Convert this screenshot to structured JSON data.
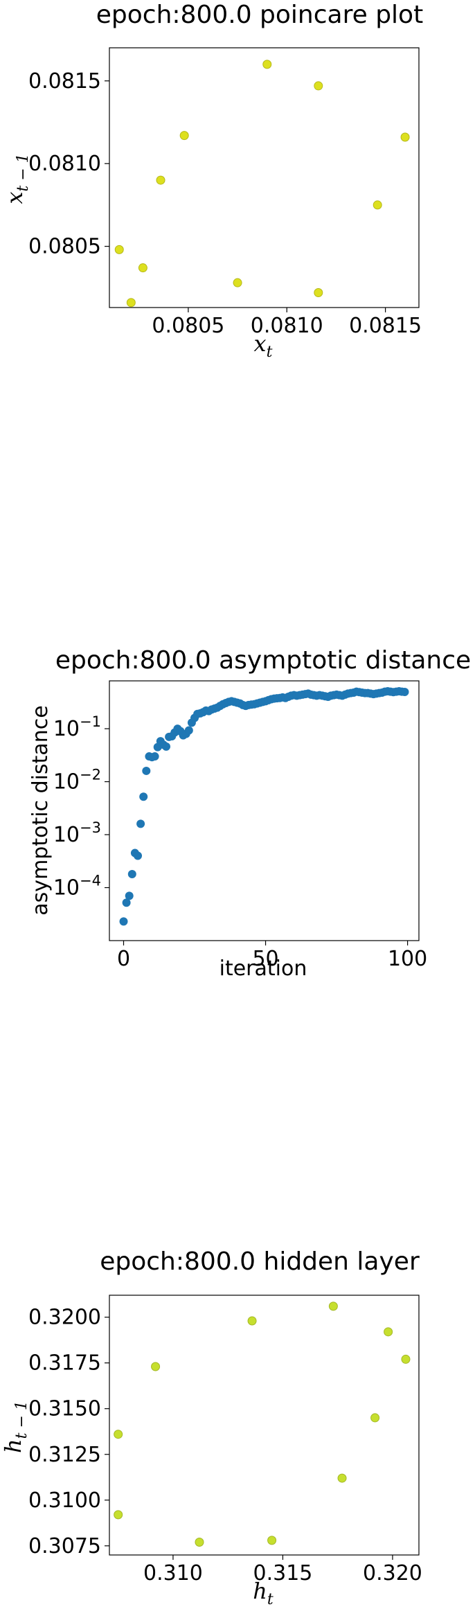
{
  "charts": [
    {
      "id": "poincare",
      "type": "scatter",
      "title": "epoch:800.0 poincare plot",
      "xlabel_main": "x",
      "xlabel_sub": "t",
      "ylabel_main": "x",
      "ylabel_sub": "t − 1",
      "xlim": [
        0.0801,
        0.08167
      ],
      "ylim": [
        0.08013,
        0.0817
      ],
      "yscale": "linear",
      "xticks": [
        {
          "v": 0.0805,
          "label": "0.0805"
        },
        {
          "v": 0.081,
          "label": "0.0810"
        },
        {
          "v": 0.0815,
          "label": "0.0815"
        }
      ],
      "yticks": [
        {
          "v": 0.0805,
          "label": "0.0805"
        },
        {
          "v": 0.081,
          "label": "0.0810"
        },
        {
          "v": 0.0815,
          "label": "0.0815"
        }
      ],
      "point_color": "#dde01f",
      "point_edge": "#b5b81a",
      "points": [
        {
          "x": 0.0809,
          "y": 0.0816
        },
        {
          "x": 0.08116,
          "y": 0.08147
        },
        {
          "x": 0.08048,
          "y": 0.08117
        },
        {
          "x": 0.0816,
          "y": 0.08116
        },
        {
          "x": 0.08036,
          "y": 0.0809
        },
        {
          "x": 0.08146,
          "y": 0.08075
        },
        {
          "x": 0.08015,
          "y": 0.08048
        },
        {
          "x": 0.08027,
          "y": 0.08037
        },
        {
          "x": 0.08075,
          "y": 0.08028
        },
        {
          "x": 0.08116,
          "y": 0.08022
        },
        {
          "x": 0.08021,
          "y": 0.08016
        }
      ]
    },
    {
      "id": "asymptotic",
      "type": "scatter",
      "title": "epoch:800.0 asymptotic distance",
      "xlabel": "iteration",
      "ylabel": "asymptotic distance",
      "xlim": [
        -5,
        104
      ],
      "ylim": [
        1e-05,
        0.8
      ],
      "yscale": "log",
      "xticks": [
        {
          "v": 0,
          "label": "0"
        },
        {
          "v": 50,
          "label": "50"
        },
        {
          "v": 100,
          "label": "100"
        }
      ],
      "yticks": [
        {
          "v": 0.0001,
          "base": "10",
          "exp": "−4"
        },
        {
          "v": 0.001,
          "base": "10",
          "exp": "−3"
        },
        {
          "v": 0.01,
          "base": "10",
          "exp": "−2"
        },
        {
          "v": 0.1,
          "base": "10",
          "exp": "−1"
        }
      ],
      "point_color": "#1f77b4",
      "x": [
        0,
        1,
        2,
        3,
        4,
        5,
        6,
        7,
        8,
        9,
        10,
        11,
        12,
        13,
        14,
        15,
        16,
        17,
        18,
        19,
        20,
        21,
        22,
        23,
        24,
        25,
        26,
        27,
        28,
        29,
        30,
        31,
        32,
        33,
        34,
        35,
        36,
        37,
        38,
        39,
        40,
        41,
        42,
        43,
        44,
        45,
        46,
        47,
        48,
        49,
        50,
        51,
        52,
        53,
        54,
        55,
        56,
        57,
        58,
        59,
        60,
        61,
        62,
        63,
        64,
        65,
        66,
        67,
        68,
        69,
        70,
        71,
        72,
        73,
        74,
        75,
        76,
        77,
        78,
        79,
        80,
        81,
        82,
        83,
        84,
        85,
        86,
        87,
        88,
        89,
        90,
        91,
        92,
        93,
        94,
        95,
        96,
        97,
        98,
        99
      ],
      "y": [
        2.3e-05,
        5.2e-05,
        7e-05,
        0.00018,
        0.00045,
        0.0004,
        0.0016,
        0.0052,
        0.016,
        0.03,
        0.029,
        0.03,
        0.045,
        0.058,
        0.05,
        0.046,
        0.07,
        0.072,
        0.085,
        0.1,
        0.09,
        0.075,
        0.08,
        0.093,
        0.13,
        0.16,
        0.19,
        0.195,
        0.205,
        0.22,
        0.215,
        0.23,
        0.24,
        0.25,
        0.27,
        0.29,
        0.305,
        0.32,
        0.33,
        0.32,
        0.31,
        0.3,
        0.28,
        0.27,
        0.28,
        0.285,
        0.29,
        0.3,
        0.31,
        0.32,
        0.33,
        0.345,
        0.36,
        0.37,
        0.375,
        0.38,
        0.39,
        0.38,
        0.4,
        0.42,
        0.43,
        0.42,
        0.43,
        0.44,
        0.45,
        0.46,
        0.44,
        0.43,
        0.42,
        0.43,
        0.42,
        0.41,
        0.4,
        0.42,
        0.43,
        0.44,
        0.43,
        0.42,
        0.44,
        0.46,
        0.47,
        0.48,
        0.5,
        0.49,
        0.48,
        0.47,
        0.47,
        0.46,
        0.45,
        0.46,
        0.47,
        0.48,
        0.5,
        0.51,
        0.5,
        0.49,
        0.5,
        0.51,
        0.5,
        0.495
      ]
    },
    {
      "id": "hidden",
      "type": "scatter",
      "title": "epoch:800.0 hidden layer",
      "xlabel_main": "h",
      "xlabel_sub": "t",
      "ylabel_main": "h",
      "ylabel_sub": "t − 1",
      "xlim": [
        0.3071,
        0.3212
      ],
      "ylim": [
        0.307,
        0.3212
      ],
      "yscale": "linear",
      "xticks": [
        {
          "v": 0.31,
          "label": "0.310"
        },
        {
          "v": 0.315,
          "label": "0.315"
        },
        {
          "v": 0.32,
          "label": "0.320"
        }
      ],
      "yticks": [
        {
          "v": 0.3075,
          "label": "0.3075"
        },
        {
          "v": 0.31,
          "label": "0.3100"
        },
        {
          "v": 0.3125,
          "label": "0.3125"
        },
        {
          "v": 0.315,
          "label": "0.3150"
        },
        {
          "v": 0.3175,
          "label": "0.3175"
        },
        {
          "v": 0.32,
          "label": "0.3200"
        }
      ],
      "point_color": "#c6df2e",
      "point_edge": "#a3b726",
      "points": [
        {
          "x": 0.3173,
          "y": 0.3206
        },
        {
          "x": 0.3136,
          "y": 0.3198
        },
        {
          "x": 0.3198,
          "y": 0.3192
        },
        {
          "x": 0.3206,
          "y": 0.3177
        },
        {
          "x": 0.3092,
          "y": 0.3173
        },
        {
          "x": 0.3192,
          "y": 0.3145
        },
        {
          "x": 0.3075,
          "y": 0.3136
        },
        {
          "x": 0.3177,
          "y": 0.3112
        },
        {
          "x": 0.3075,
          "y": 0.3092
        },
        {
          "x": 0.3112,
          "y": 0.3077
        },
        {
          "x": 0.3145,
          "y": 0.3078
        }
      ]
    }
  ]
}
